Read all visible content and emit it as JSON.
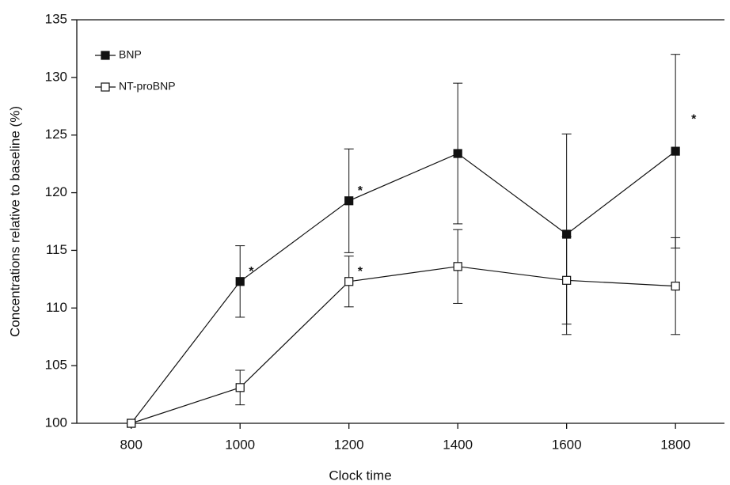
{
  "chart_data": {
    "type": "line",
    "x_label": "Clock time",
    "y_label": "Concentrations relative to baseline (%)",
    "x": [
      800,
      1000,
      1200,
      1400,
      1600,
      1800
    ],
    "series": [
      {
        "name": "BNP",
        "color": "#111111",
        "marker": "filled-square",
        "values": [
          100,
          112.3,
          119.3,
          123.4,
          116.4,
          123.6
        ],
        "errors": [
          0,
          3.1,
          4.5,
          6.1,
          8.7,
          8.4
        ]
      },
      {
        "name": "NT-proBNP",
        "color": "#111111",
        "marker": "open-square",
        "values": [
          100,
          103.1,
          112.3,
          113.6,
          112.4,
          111.9
        ],
        "errors": [
          0,
          1.5,
          2.2,
          3.2,
          3.8,
          4.2
        ]
      }
    ],
    "annotations": [
      "*",
      "*",
      "*",
      "*"
    ],
    "xlim": [
      700,
      1890
    ],
    "xticks": [
      800,
      1000,
      1200,
      1400,
      1600,
      1800
    ],
    "ylim": [
      100,
      135
    ],
    "yticks": [
      100,
      105,
      110,
      115,
      120,
      125,
      130,
      135
    ],
    "legend": "upper-left"
  }
}
